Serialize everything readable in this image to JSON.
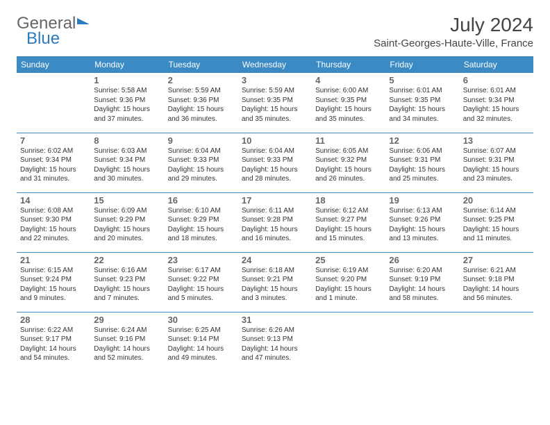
{
  "logo": {
    "part1": "General",
    "part2": "Blue"
  },
  "title": "July 2024",
  "location": "Saint-Georges-Haute-Ville, France",
  "header_bg": "#3b8ac4",
  "header_fg": "#ffffff",
  "border_color": "#3b8ac4",
  "daynum_color": "#666666",
  "text_color": "#333333",
  "day_headers": [
    "Sunday",
    "Monday",
    "Tuesday",
    "Wednesday",
    "Thursday",
    "Friday",
    "Saturday"
  ],
  "weeks": [
    [
      null,
      {
        "n": "1",
        "sr": "5:58 AM",
        "ss": "9:36 PM",
        "dl": "15 hours and 37 minutes."
      },
      {
        "n": "2",
        "sr": "5:59 AM",
        "ss": "9:36 PM",
        "dl": "15 hours and 36 minutes."
      },
      {
        "n": "3",
        "sr": "5:59 AM",
        "ss": "9:35 PM",
        "dl": "15 hours and 35 minutes."
      },
      {
        "n": "4",
        "sr": "6:00 AM",
        "ss": "9:35 PM",
        "dl": "15 hours and 35 minutes."
      },
      {
        "n": "5",
        "sr": "6:01 AM",
        "ss": "9:35 PM",
        "dl": "15 hours and 34 minutes."
      },
      {
        "n": "6",
        "sr": "6:01 AM",
        "ss": "9:34 PM",
        "dl": "15 hours and 32 minutes."
      }
    ],
    [
      {
        "n": "7",
        "sr": "6:02 AM",
        "ss": "9:34 PM",
        "dl": "15 hours and 31 minutes."
      },
      {
        "n": "8",
        "sr": "6:03 AM",
        "ss": "9:34 PM",
        "dl": "15 hours and 30 minutes."
      },
      {
        "n": "9",
        "sr": "6:04 AM",
        "ss": "9:33 PM",
        "dl": "15 hours and 29 minutes."
      },
      {
        "n": "10",
        "sr": "6:04 AM",
        "ss": "9:33 PM",
        "dl": "15 hours and 28 minutes."
      },
      {
        "n": "11",
        "sr": "6:05 AM",
        "ss": "9:32 PM",
        "dl": "15 hours and 26 minutes."
      },
      {
        "n": "12",
        "sr": "6:06 AM",
        "ss": "9:31 PM",
        "dl": "15 hours and 25 minutes."
      },
      {
        "n": "13",
        "sr": "6:07 AM",
        "ss": "9:31 PM",
        "dl": "15 hours and 23 minutes."
      }
    ],
    [
      {
        "n": "14",
        "sr": "6:08 AM",
        "ss": "9:30 PM",
        "dl": "15 hours and 22 minutes."
      },
      {
        "n": "15",
        "sr": "6:09 AM",
        "ss": "9:29 PM",
        "dl": "15 hours and 20 minutes."
      },
      {
        "n": "16",
        "sr": "6:10 AM",
        "ss": "9:29 PM",
        "dl": "15 hours and 18 minutes."
      },
      {
        "n": "17",
        "sr": "6:11 AM",
        "ss": "9:28 PM",
        "dl": "15 hours and 16 minutes."
      },
      {
        "n": "18",
        "sr": "6:12 AM",
        "ss": "9:27 PM",
        "dl": "15 hours and 15 minutes."
      },
      {
        "n": "19",
        "sr": "6:13 AM",
        "ss": "9:26 PM",
        "dl": "15 hours and 13 minutes."
      },
      {
        "n": "20",
        "sr": "6:14 AM",
        "ss": "9:25 PM",
        "dl": "15 hours and 11 minutes."
      }
    ],
    [
      {
        "n": "21",
        "sr": "6:15 AM",
        "ss": "9:24 PM",
        "dl": "15 hours and 9 minutes."
      },
      {
        "n": "22",
        "sr": "6:16 AM",
        "ss": "9:23 PM",
        "dl": "15 hours and 7 minutes."
      },
      {
        "n": "23",
        "sr": "6:17 AM",
        "ss": "9:22 PM",
        "dl": "15 hours and 5 minutes."
      },
      {
        "n": "24",
        "sr": "6:18 AM",
        "ss": "9:21 PM",
        "dl": "15 hours and 3 minutes."
      },
      {
        "n": "25",
        "sr": "6:19 AM",
        "ss": "9:20 PM",
        "dl": "15 hours and 1 minute."
      },
      {
        "n": "26",
        "sr": "6:20 AM",
        "ss": "9:19 PM",
        "dl": "14 hours and 58 minutes."
      },
      {
        "n": "27",
        "sr": "6:21 AM",
        "ss": "9:18 PM",
        "dl": "14 hours and 56 minutes."
      }
    ],
    [
      {
        "n": "28",
        "sr": "6:22 AM",
        "ss": "9:17 PM",
        "dl": "14 hours and 54 minutes."
      },
      {
        "n": "29",
        "sr": "6:24 AM",
        "ss": "9:16 PM",
        "dl": "14 hours and 52 minutes."
      },
      {
        "n": "30",
        "sr": "6:25 AM",
        "ss": "9:14 PM",
        "dl": "14 hours and 49 minutes."
      },
      {
        "n": "31",
        "sr": "6:26 AM",
        "ss": "9:13 PM",
        "dl": "14 hours and 47 minutes."
      },
      null,
      null,
      null
    ]
  ],
  "labels": {
    "sunrise": "Sunrise: ",
    "sunset": "Sunset: ",
    "daylight": "Daylight: "
  }
}
